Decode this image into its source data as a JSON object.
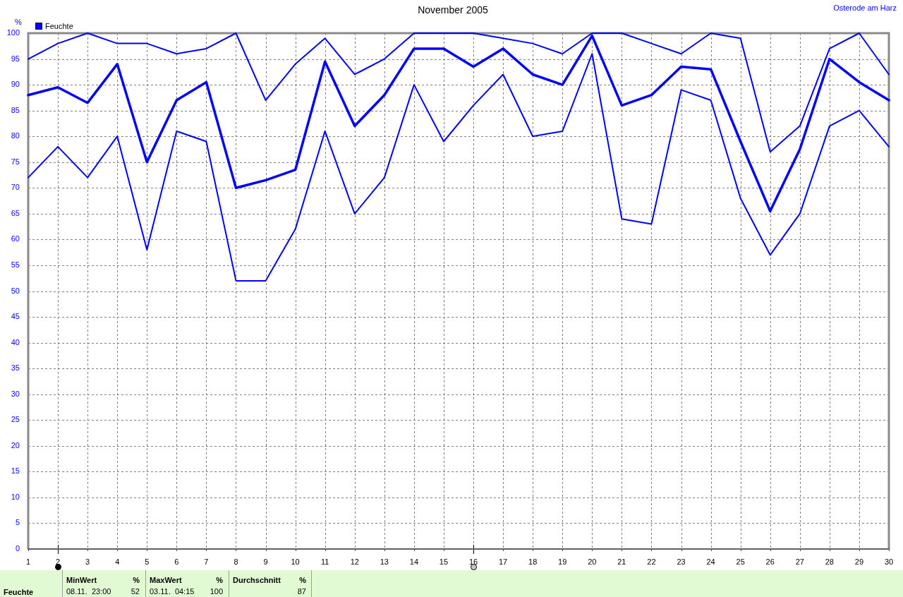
{
  "chart_data": [
    {
      "type": "line",
      "title": "November 2005",
      "annotations": [
        "Osterode am Harz"
      ],
      "ylabel": "%",
      "x": [
        1,
        2,
        3,
        4,
        5,
        6,
        7,
        8,
        9,
        10,
        11,
        12,
        13,
        14,
        15,
        16,
        17,
        18,
        19,
        20,
        21,
        22,
        23,
        24,
        25,
        26,
        27,
        28,
        29,
        30
      ],
      "xlim": [
        1,
        30
      ],
      "xticks": [
        1,
        2,
        3,
        4,
        5,
        6,
        7,
        8,
        9,
        10,
        11,
        12,
        13,
        14,
        15,
        16,
        17,
        18,
        19,
        20,
        21,
        22,
        23,
        24,
        25,
        26,
        27,
        28,
        29,
        30
      ],
      "ylim": [
        0,
        100
      ],
      "yticks": [
        0,
        5,
        10,
        15,
        20,
        25,
        30,
        35,
        40,
        45,
        50,
        55,
        60,
        65,
        70,
        75,
        80,
        85,
        90,
        95,
        100
      ],
      "grid": true,
      "legend": "top left",
      "series": [
        {
          "color": "#0000ff",
          "values": [
            95,
            98,
            100,
            98,
            98,
            96,
            97,
            100,
            87,
            94,
            99,
            92,
            95,
            100,
            100,
            100,
            99,
            98,
            96,
            100,
            100,
            98,
            96,
            100,
            99,
            77,
            82,
            97,
            100,
            92
          ]
        },
        {
          "name": "Feuchte",
          "color": "#0000ff",
          "values": [
            88,
            89.5,
            86.5,
            94,
            75,
            87,
            90.5,
            70,
            71.5,
            73.5,
            94.5,
            82,
            88,
            97,
            97,
            93.5,
            97,
            92,
            90,
            99.5,
            86,
            88,
            93.5,
            93,
            79,
            65.5,
            77.5,
            95,
            90.5,
            87
          ]
        },
        {
          "color": "#0000ff",
          "values": [
            72,
            78,
            72,
            80,
            58,
            81,
            79,
            52,
            52,
            62,
            81,
            65,
            72,
            90,
            79,
            86,
            92,
            80,
            81,
            96,
            64,
            63,
            89,
            87,
            68,
            57,
            65,
            82,
            85,
            78
          ]
        }
      ]
    },
    {
      "type": "other",
      "annotations": [
        "MinWert",
        "%",
        "MaxWert",
        "%",
        "Durchschnitt",
        "%",
        "Feuchte",
        "08.11.  23:00",
        "52",
        "03.11.  04:15",
        "100",
        "87"
      ]
    }
  ]
}
